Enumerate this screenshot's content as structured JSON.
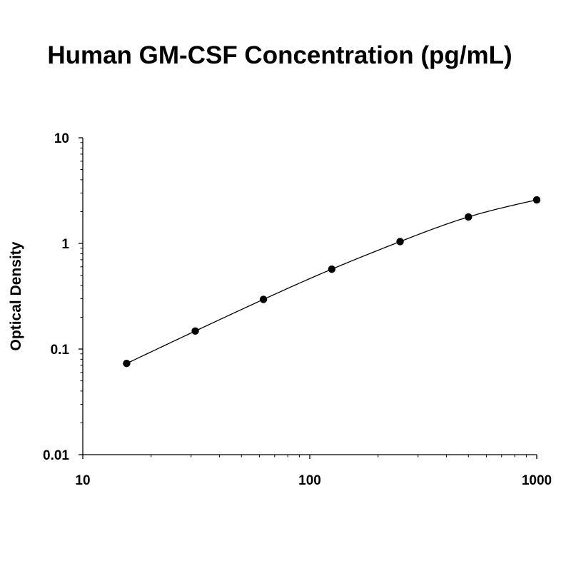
{
  "chart_data": {
    "type": "scatter",
    "title": "Human GM-CSF Concentration (pg/mL)",
    "xlabel": "",
    "ylabel": "Optical Density",
    "xscale": "log",
    "yscale": "log",
    "xlim": [
      10,
      1000
    ],
    "ylim": [
      0.01,
      10
    ],
    "x_ticks": [
      "10",
      "100",
      "1000"
    ],
    "y_ticks": [
      "0.01",
      "0.1",
      "1",
      "10"
    ],
    "grid": false,
    "legend": "none",
    "series": [
      {
        "x": [
          15.6,
          31.3,
          62.5,
          125,
          250,
          500,
          1000
        ],
        "y": [
          0.073,
          0.148,
          0.295,
          0.57,
          1.04,
          1.78,
          2.58
        ]
      }
    ],
    "fit_curve": true
  },
  "colors": {
    "marker": "#000000",
    "line": "#000000",
    "axis": "#000000"
  }
}
